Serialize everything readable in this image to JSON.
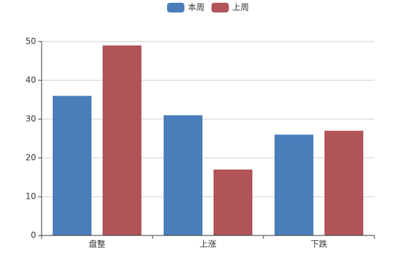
{
  "chart_data": {
    "type": "bar",
    "categories": [
      "盘整",
      "上涨",
      "下跌"
    ],
    "series": [
      {
        "name": "本周",
        "color": "#4a7ebb",
        "values": [
          36,
          31,
          26
        ]
      },
      {
        "name": "上周",
        "color": "#b05458",
        "values": [
          49,
          17,
          27
        ]
      }
    ],
    "ylim": [
      0,
      50
    ],
    "yticks": [
      0,
      10,
      20,
      30,
      40,
      50
    ],
    "grid": true,
    "legend": "top"
  }
}
